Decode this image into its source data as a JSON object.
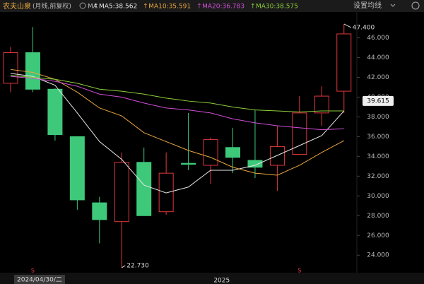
{
  "chart_data": {
    "type": "candlestick",
    "title": "农夫山泉",
    "subtitle": "(月线,前复权)",
    "ma_label": "MA",
    "settings_label": "设置均线",
    "cursor_label": "2024/04/30/二",
    "categories": [
      null,
      null,
      null,
      null,
      null,
      null,
      null,
      null,
      null,
      null,
      "2025",
      null,
      null,
      null,
      null,
      null
    ],
    "signals": [
      null,
      "S",
      null,
      null,
      null,
      null,
      null,
      null,
      null,
      null,
      null,
      null,
      null,
      "S",
      null,
      null
    ],
    "open": [
      41.4,
      44.5,
      40.8,
      36.0,
      29.3,
      27.4,
      33.4,
      28.4,
      33.3,
      33.1,
      34.9,
      33.6,
      33.1,
      34.2,
      38.4,
      40.6
    ],
    "high": [
      45.1,
      47.1,
      40.9,
      36.0,
      29.9,
      34.4,
      34.9,
      34.4,
      38.4,
      35.9,
      36.9,
      38.7,
      37.1,
      40.1,
      41.1,
      47.4
    ],
    "low": [
      40.5,
      40.5,
      35.6,
      28.6,
      25.2,
      22.73,
      28.0,
      28.1,
      32.6,
      31.2,
      32.3,
      31.8,
      30.5,
      34.2,
      37.1,
      38.4
    ],
    "close": [
      44.5,
      40.8,
      36.2,
      29.6,
      27.6,
      33.4,
      28.0,
      32.3,
      33.2,
      35.7,
      33.9,
      32.9,
      35.0,
      38.4,
      40.1,
      46.4
    ],
    "up_color": "#e0383e",
    "down_color": "#3ec97a",
    "series": [
      {
        "name": "MA5:38.562",
        "color": "#e6e6e6",
        "values": [
          42.4,
          42.1,
          41.2,
          38.4,
          35.5,
          33.7,
          31.1,
          30.3,
          30.9,
          32.6,
          32.6,
          33.1,
          34.1,
          35.1,
          36.1,
          38.6
        ]
      },
      {
        "name": "MA10:35.591",
        "color": "#e8a640",
        "values": [
          42.8,
          42.5,
          41.8,
          40.5,
          38.9,
          38.1,
          36.4,
          35.5,
          34.6,
          33.9,
          32.9,
          32.3,
          32.1,
          33.1,
          34.4,
          35.6
        ]
      },
      {
        "name": "MA20:36.783",
        "color": "#d24fd8",
        "values": [
          42.1,
          41.9,
          41.6,
          41.1,
          40.3,
          40.0,
          39.4,
          38.9,
          38.7,
          38.4,
          37.8,
          37.4,
          37.1,
          36.9,
          36.7,
          36.8
        ]
      },
      {
        "name": "MA30:38.575",
        "color": "#8ccf3a",
        "values": [
          42.2,
          42.0,
          41.8,
          41.4,
          40.8,
          40.6,
          40.3,
          39.9,
          39.6,
          39.4,
          39.0,
          38.7,
          38.6,
          38.5,
          38.6,
          38.6
        ]
      }
    ],
    "high_label": "47.400",
    "low_label": "22.730",
    "last_price": 39.615,
    "ylim": [
      22.3,
      48.4
    ],
    "yticks": [
      {
        "value": 24,
        "label": "24.000"
      },
      {
        "value": 26,
        "label": "26.000"
      },
      {
        "value": 28,
        "label": "28.000"
      },
      {
        "value": 30,
        "label": "30.000"
      },
      {
        "value": 32,
        "label": "32.000"
      },
      {
        "value": 34,
        "label": "34.000"
      },
      {
        "value": 36,
        "label": "36.000"
      },
      {
        "value": 38,
        "label": "38.000"
      },
      {
        "value": 40,
        "label": "40.000"
      },
      {
        "value": 42,
        "label": "42.000"
      },
      {
        "value": 44,
        "label": "44.000"
      },
      {
        "value": 46,
        "label": "46.000"
      }
    ]
  }
}
